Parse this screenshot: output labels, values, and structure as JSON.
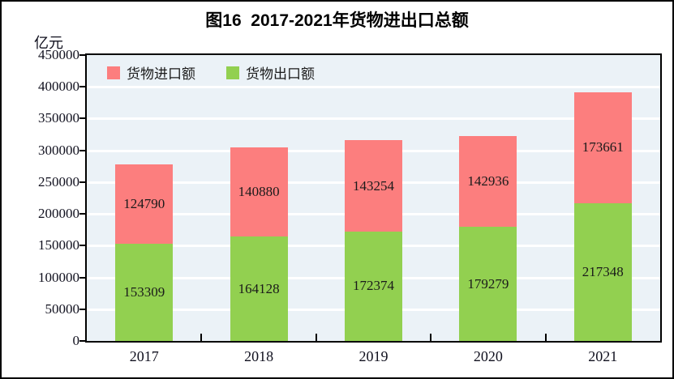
{
  "figure": {
    "title": "图16  2017-2021年货物进出口总额",
    "unit_label": "亿元"
  },
  "legend": [
    {
      "name": "import",
      "label": "货物进口额",
      "color": "#FC7E7E"
    },
    {
      "name": "export",
      "label": "货物出口额",
      "color": "#92D050"
    }
  ],
  "chart_data": {
    "type": "bar",
    "stacked": true,
    "title": "图16  2017-2021年货物进出口总额",
    "ylabel": "亿元",
    "xlabel": "",
    "categories": [
      "2017",
      "2018",
      "2019",
      "2020",
      "2021"
    ],
    "series": [
      {
        "name": "货物出口额",
        "role": "export",
        "color": "#92D050",
        "values": [
          153309,
          164128,
          172374,
          179279,
          217348
        ]
      },
      {
        "name": "货物进口额",
        "role": "import",
        "color": "#FC7E7E",
        "values": [
          124790,
          140880,
          143254,
          142936,
          173661
        ]
      }
    ],
    "totals": [
      278099,
      305008,
      315628,
      322215,
      391009
    ],
    "ylim": [
      0,
      450000
    ],
    "yticks": [
      0,
      50000,
      100000,
      150000,
      200000,
      250000,
      300000,
      350000,
      400000,
      450000
    ],
    "grid": true,
    "grid_color": "#FFFFFF",
    "plot_background": "#EBF2F7",
    "legend_position": "top-left-inside",
    "data_labels": "inside-center"
  }
}
